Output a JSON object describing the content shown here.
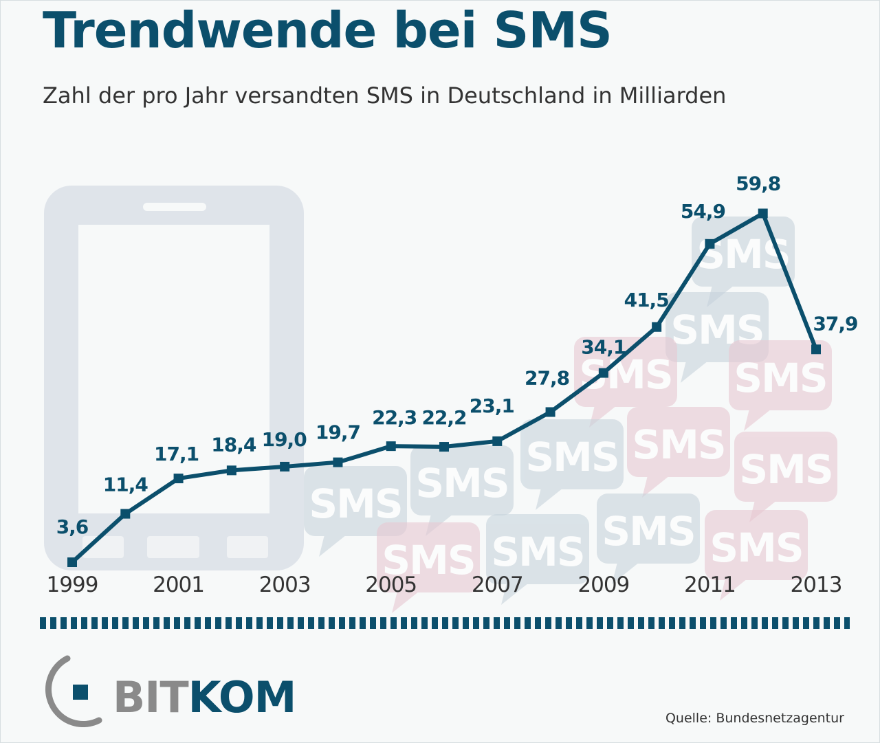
{
  "header": {
    "title": "Trendwende bei SMS",
    "subtitle": "Zahl der pro Jahr versandten SMS in Deutschland in Milliarden"
  },
  "chart_data": {
    "type": "line",
    "x": [
      1999,
      2000,
      2001,
      2002,
      2003,
      2004,
      2005,
      2006,
      2007,
      2008,
      2009,
      2010,
      2011,
      2012,
      2013
    ],
    "values": [
      3.6,
      11.4,
      17.1,
      18.4,
      19.0,
      19.7,
      22.3,
      22.2,
      23.1,
      27.8,
      34.1,
      41.5,
      54.9,
      59.8,
      37.9
    ],
    "value_labels": [
      "3,6",
      "11,4",
      "17,1",
      "18,4",
      "19,0",
      "19,7",
      "22,3",
      "22,2",
      "23,1",
      "27,8",
      "34,1",
      "41,5",
      "54,9",
      "59,8",
      "37,9"
    ],
    "x_tick_labels": [
      "1999",
      "2001",
      "2003",
      "2005",
      "2007",
      "2009",
      "2011",
      "2013"
    ],
    "title": "Trendwende bei SMS",
    "unit": "Milliarden",
    "grid": false,
    "legend": "none"
  },
  "decor": {
    "bubble_text": "SMS",
    "icons": [
      "smartphone-icon",
      "sms-bubble-icon",
      "bitkom-logo"
    ]
  },
  "colors": {
    "line": "#0b4f6c",
    "title": "#0b4f6c",
    "text": "#333333",
    "background": "#f7f9f9",
    "bubble_blue": "#c7d3dc",
    "bubble_red": "#e8c8d2",
    "phone": "#d8dde6"
  },
  "logo": {
    "part1": "BIT",
    "part2": "KOM"
  },
  "footer": {
    "source": "Quelle: Bundesnetzagentur"
  }
}
